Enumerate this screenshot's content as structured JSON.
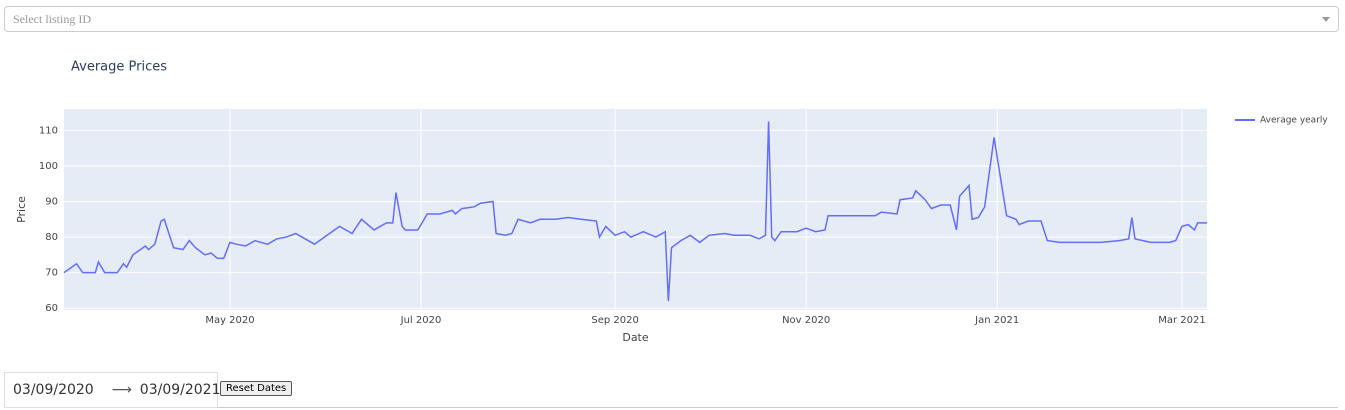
{
  "dropdown": {
    "placeholder": "Select listing ID"
  },
  "chart_data": {
    "type": "line",
    "title": "Average Prices",
    "xlabel": "Date",
    "ylabel": "Price",
    "x": [
      "2020-03-09",
      "2020-03-13",
      "2020-03-15",
      "2020-03-19",
      "2020-03-20",
      "2020-03-22",
      "2020-03-26",
      "2020-03-28",
      "2020-03-29",
      "2020-03-31",
      "2020-04-04",
      "2020-04-05",
      "2020-04-07",
      "2020-04-09",
      "2020-04-10",
      "2020-04-13",
      "2020-04-16",
      "2020-04-18",
      "2020-04-20",
      "2020-04-23",
      "2020-04-25",
      "2020-04-27",
      "2020-04-29",
      "2020-05-01",
      "2020-05-03",
      "2020-05-06",
      "2020-05-09",
      "2020-05-13",
      "2020-05-16",
      "2020-05-19",
      "2020-05-22",
      "2020-05-24",
      "2020-05-28",
      "2020-06-01",
      "2020-06-05",
      "2020-06-09",
      "2020-06-12",
      "2020-06-16",
      "2020-06-20",
      "2020-06-22",
      "2020-06-23",
      "2020-06-25",
      "2020-06-26",
      "2020-06-30",
      "2020-07-03",
      "2020-07-07",
      "2020-07-11",
      "2020-07-12",
      "2020-07-14",
      "2020-07-18",
      "2020-07-20",
      "2020-07-24",
      "2020-07-25",
      "2020-07-28",
      "2020-07-30",
      "2020-08-01",
      "2020-08-05",
      "2020-08-08",
      "2020-08-13",
      "2020-08-17",
      "2020-08-21",
      "2020-08-26",
      "2020-08-27",
      "2020-08-29",
      "2020-09-01",
      "2020-09-04",
      "2020-09-06",
      "2020-09-10",
      "2020-09-14",
      "2020-09-17",
      "2020-09-18",
      "2020-09-19",
      "2020-09-22",
      "2020-09-25",
      "2020-09-28",
      "2020-10-01",
      "2020-10-06",
      "2020-10-09",
      "2020-10-14",
      "2020-10-17",
      "2020-10-19",
      "2020-10-20",
      "2020-10-21",
      "2020-10-22",
      "2020-10-24",
      "2020-10-29",
      "2020-11-01",
      "2020-11-04",
      "2020-11-07",
      "2020-11-08",
      "2020-11-14",
      "2020-11-19",
      "2020-11-23",
      "2020-11-25",
      "2020-11-30",
      "2020-12-01",
      "2020-12-05",
      "2020-12-06",
      "2020-12-09",
      "2020-12-11",
      "2020-12-14",
      "2020-12-17",
      "2020-12-19",
      "2020-12-20",
      "2020-12-23",
      "2020-12-24",
      "2020-12-26",
      "2020-12-28",
      "2020-12-31",
      "2021-01-04",
      "2021-01-07",
      "2021-01-08",
      "2021-01-11",
      "2021-01-15",
      "2021-01-17",
      "2021-01-21",
      "2021-01-28",
      "2021-02-03",
      "2021-02-09",
      "2021-02-12",
      "2021-02-13",
      "2021-02-14",
      "2021-02-19",
      "2021-02-25",
      "2021-02-27",
      "2021-03-01",
      "2021-03-03",
      "2021-03-05",
      "2021-03-06",
      "2021-03-09"
    ],
    "series": [
      {
        "name": "Average yearly",
        "color": "#636efa",
        "values": [
          70,
          72.5,
          70,
          70,
          73,
          70,
          70,
          72.5,
          71.5,
          75,
          77.5,
          76.5,
          78,
          84.5,
          85,
          77,
          76.5,
          79,
          77,
          75,
          75.5,
          74,
          74,
          78.5,
          78,
          77.5,
          79,
          78,
          79.5,
          80,
          81,
          80,
          78,
          80.5,
          83,
          81,
          85,
          82,
          84,
          84,
          92.5,
          83,
          82,
          82,
          86.5,
          86.5,
          87.5,
          86.5,
          88,
          88.5,
          89.5,
          90,
          81,
          80.5,
          81,
          85,
          84,
          85,
          85,
          85.5,
          85,
          84.5,
          80,
          83,
          80.5,
          81.5,
          80,
          81.5,
          80,
          81.5,
          62,
          77,
          79,
          80.5,
          78.5,
          80.5,
          81,
          80.5,
          80.5,
          79.5,
          80.5,
          112.5,
          80,
          79,
          81.5,
          81.5,
          82.5,
          81.5,
          82,
          86,
          86,
          86,
          86,
          87,
          86.5,
          90.5,
          91,
          93,
          90.5,
          88,
          89,
          89,
          82,
          91.5,
          94.5,
          85,
          85.5,
          88.5,
          108,
          86,
          85,
          83.5,
          84.5,
          84.5,
          79,
          78.5,
          78.5,
          78.5,
          79,
          79.5,
          85.5,
          79.5,
          78.5,
          78.5,
          79,
          83,
          83.5,
          82,
          84,
          84
        ]
      }
    ],
    "xlim": [
      "2020-03-09",
      "2021-03-09"
    ],
    "xticks": [
      {
        "value": "2020-05-01",
        "label": "May 2020"
      },
      {
        "value": "2020-07-01",
        "label": "Jul 2020"
      },
      {
        "value": "2020-09-01",
        "label": "Sep 2020"
      },
      {
        "value": "2020-11-01",
        "label": "Nov 2020"
      },
      {
        "value": "2021-01-01",
        "label": "Jan 2021"
      },
      {
        "value": "2021-03-01",
        "label": "Mar 2021"
      }
    ],
    "ylim": [
      59.5,
      116
    ],
    "yticks": [
      60,
      70,
      80,
      90,
      100,
      110
    ],
    "grid": true,
    "legend": "right"
  },
  "date_range": {
    "start": "03/09/2020",
    "end": "03/09/2021"
  },
  "reset_button": "Reset Dates"
}
